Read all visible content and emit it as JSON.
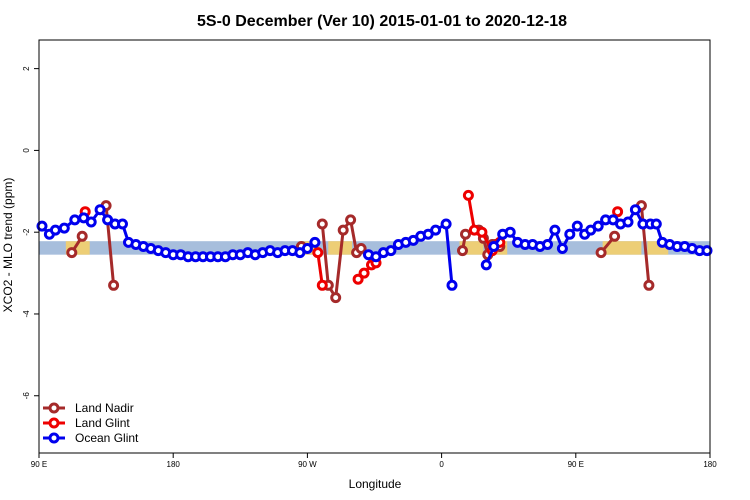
{
  "chart_data": {
    "type": "line",
    "title": "5S-0 December (Ver 10)   2015-01-01 to 2020-12-18",
    "xlabel": "Longitude",
    "ylabel": "XCO2 - MLO trend (ppm)",
    "x_axis_mode": "unwrapped longitude from 90 E to 180 E+360",
    "xlim": [
      90,
      540
    ],
    "ylim": [
      -7.4,
      2.7
    ],
    "x_ticks": [
      {
        "value": 90,
        "label": "90 E"
      },
      {
        "value": 180,
        "label": "180"
      },
      {
        "value": 270,
        "label": "90 W"
      },
      {
        "value": 360,
        "label": "0"
      },
      {
        "value": 450,
        "label": "90 E"
      },
      {
        "value": 540,
        "label": "180"
      }
    ],
    "y_ticks": [
      {
        "value": 2,
        "label": "2"
      },
      {
        "value": 0,
        "label": "0"
      },
      {
        "value": -2,
        "label": "-2"
      },
      {
        "value": -4,
        "label": "-4"
      },
      {
        "value": -6,
        "label": "-6"
      }
    ],
    "band": {
      "y_low": -2.55,
      "y_high": -2.22,
      "color": "#a7bedc"
    },
    "band_highlights": [
      {
        "x0": 108,
        "x1": 124,
        "color": "#f5cf6a"
      },
      {
        "x0": 267,
        "x1": 278,
        "color": "#f5cf6a"
      },
      {
        "x0": 284,
        "x1": 300,
        "color": "#f5cf6a"
      },
      {
        "x0": 372,
        "x1": 388,
        "color": "#f5cf6a"
      },
      {
        "x0": 392,
        "x1": 404,
        "color": "#f5cf6a"
      },
      {
        "x0": 468,
        "x1": 494,
        "color": "#f5cf6a"
      },
      {
        "x0": 498,
        "x1": 512,
        "color": "#f5cf6a"
      }
    ],
    "legend_position": "bottom-left",
    "series": [
      {
        "name": "Land Nadir",
        "color": "#a52a2a",
        "segments": [
          [
            [
              112,
              -2.5
            ],
            [
              119,
              -2.1
            ]
          ],
          [
            [
              135,
              -1.35
            ],
            [
              140,
              -3.3
            ]
          ],
          [
            [
              266,
              -2.35
            ]
          ],
          [
            [
              280,
              -1.8
            ],
            [
              284,
              -3.3
            ],
            [
              289,
              -3.6
            ],
            [
              294,
              -1.95
            ],
            [
              299,
              -1.7
            ],
            [
              303,
              -2.5
            ],
            [
              306,
              -2.4
            ]
          ],
          [
            [
              374,
              -2.45
            ],
            [
              376,
              -2.05
            ],
            [
              385,
              -1.95
            ],
            [
              388,
              -2.15
            ],
            [
              391,
              -2.55
            ],
            [
              394,
              -2.3
            ],
            [
              396,
              -2.3
            ],
            [
              399,
              -2.35
            ]
          ],
          [
            [
              467,
              -2.5
            ],
            [
              476,
              -2.1
            ]
          ],
          [
            [
              494,
              -1.35
            ],
            [
              499,
              -3.3
            ]
          ]
        ]
      },
      {
        "name": "Land Glint",
        "color": "#ee0000",
        "segments": [
          [
            [
              121,
              -1.5
            ]
          ],
          [
            [
              277,
              -2.5
            ],
            [
              280,
              -3.3
            ]
          ],
          [
            [
              304,
              -3.15
            ],
            [
              308,
              -3.0
            ],
            [
              313,
              -2.8
            ],
            [
              316,
              -2.75
            ]
          ],
          [
            [
              378,
              -1.1
            ],
            [
              382,
              -1.95
            ],
            [
              387,
              -2.0
            ],
            [
              394,
              -2.45
            ],
            [
              399,
              -2.25
            ]
          ],
          [
            [
              478,
              -1.5
            ]
          ]
        ]
      },
      {
        "name": "Ocean Glint",
        "color": "#0000ee",
        "segments": [
          [
            [
              92,
              -1.85
            ],
            [
              97,
              -2.05
            ],
            [
              101,
              -1.95
            ],
            [
              107,
              -1.9
            ],
            [
              114,
              -1.7
            ],
            [
              120,
              -1.65
            ],
            [
              125,
              -1.75
            ],
            [
              131,
              -1.45
            ],
            [
              136,
              -1.7
            ],
            [
              141,
              -1.8
            ],
            [
              146,
              -1.8
            ],
            [
              150,
              -2.25
            ],
            [
              155,
              -2.3
            ],
            [
              160,
              -2.35
            ],
            [
              165,
              -2.4
            ],
            [
              170,
              -2.45
            ],
            [
              175,
              -2.5
            ],
            [
              180,
              -2.55
            ],
            [
              185,
              -2.55
            ],
            [
              190,
              -2.6
            ],
            [
              195,
              -2.6
            ],
            [
              200,
              -2.6
            ],
            [
              205,
              -2.6
            ],
            [
              210,
              -2.6
            ],
            [
              215,
              -2.6
            ],
            [
              220,
              -2.55
            ],
            [
              225,
              -2.55
            ],
            [
              230,
              -2.5
            ],
            [
              235,
              -2.55
            ],
            [
              240,
              -2.5
            ],
            [
              245,
              -2.45
            ],
            [
              250,
              -2.5
            ],
            [
              255,
              -2.45
            ],
            [
              260,
              -2.45
            ],
            [
              265,
              -2.5
            ],
            [
              270,
              -2.4
            ],
            [
              275,
              -2.25
            ]
          ],
          [
            [
              311,
              -2.55
            ],
            [
              316,
              -2.6
            ],
            [
              321,
              -2.5
            ],
            [
              326,
              -2.45
            ],
            [
              331,
              -2.3
            ],
            [
              336,
              -2.25
            ],
            [
              341,
              -2.2
            ],
            [
              346,
              -2.1
            ],
            [
              351,
              -2.05
            ],
            [
              356,
              -1.95
            ],
            [
              363,
              -1.8
            ],
            [
              367,
              -3.3
            ]
          ],
          [
            [
              390,
              -2.8
            ],
            [
              395,
              -2.35
            ],
            [
              401,
              -2.05
            ],
            [
              406,
              -2.0
            ],
            [
              411,
              -2.25
            ],
            [
              416,
              -2.3
            ],
            [
              421,
              -2.3
            ],
            [
              426,
              -2.35
            ],
            [
              431,
              -2.3
            ],
            [
              436,
              -1.95
            ],
            [
              441,
              -2.4
            ],
            [
              446,
              -2.05
            ],
            [
              451,
              -1.85
            ],
            [
              456,
              -2.05
            ],
            [
              460,
              -1.95
            ],
            [
              465,
              -1.85
            ],
            [
              470,
              -1.7
            ],
            [
              475,
              -1.7
            ],
            [
              480,
              -1.8
            ],
            [
              485,
              -1.75
            ],
            [
              490,
              -1.45
            ],
            [
              495,
              -1.8
            ],
            [
              500,
              -1.8
            ],
            [
              504,
              -1.8
            ],
            [
              508,
              -2.25
            ],
            [
              513,
              -2.3
            ],
            [
              518,
              -2.35
            ],
            [
              523,
              -2.35
            ],
            [
              528,
              -2.4
            ],
            [
              533,
              -2.45
            ],
            [
              538,
              -2.45
            ]
          ]
        ]
      }
    ]
  }
}
